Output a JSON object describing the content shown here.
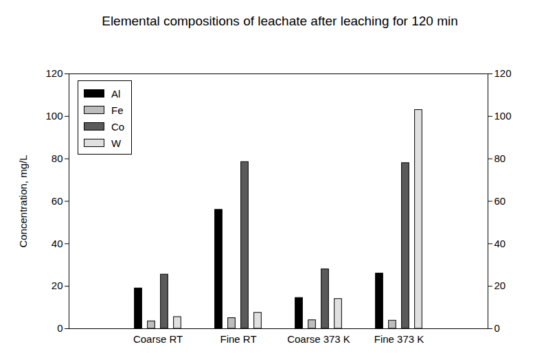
{
  "chart_data": {
    "type": "bar",
    "title": "Elemental compositions of leachate after leaching for 120 min",
    "y_label": "Concentration, mg/L",
    "categories": [
      "Coarse RT",
      "Fine RT",
      "Coarse 373 K",
      "Fine 373 K"
    ],
    "series": [
      {
        "name": "Al",
        "color": "#000000",
        "values": [
          19,
          56,
          14.5,
          26
        ]
      },
      {
        "name": "Fe",
        "color": "#bdbdbd",
        "values": [
          3.5,
          5,
          4,
          3.8
        ]
      },
      {
        "name": "Co",
        "color": "#5a5a5a",
        "values": [
          25.5,
          78.5,
          28,
          78
        ]
      },
      {
        "name": "W",
        "color": "#e0e0e0",
        "values": [
          5.5,
          7.5,
          14,
          103
        ]
      }
    ],
    "ylim": [
      0,
      120
    ],
    "yticks": [
      0,
      20,
      40,
      60,
      80,
      100,
      120
    ],
    "y2lim": [
      0,
      120
    ],
    "y2ticks": [
      0,
      20,
      40,
      60,
      80,
      100,
      120
    ],
    "legend": "upper left",
    "grid": false
  }
}
